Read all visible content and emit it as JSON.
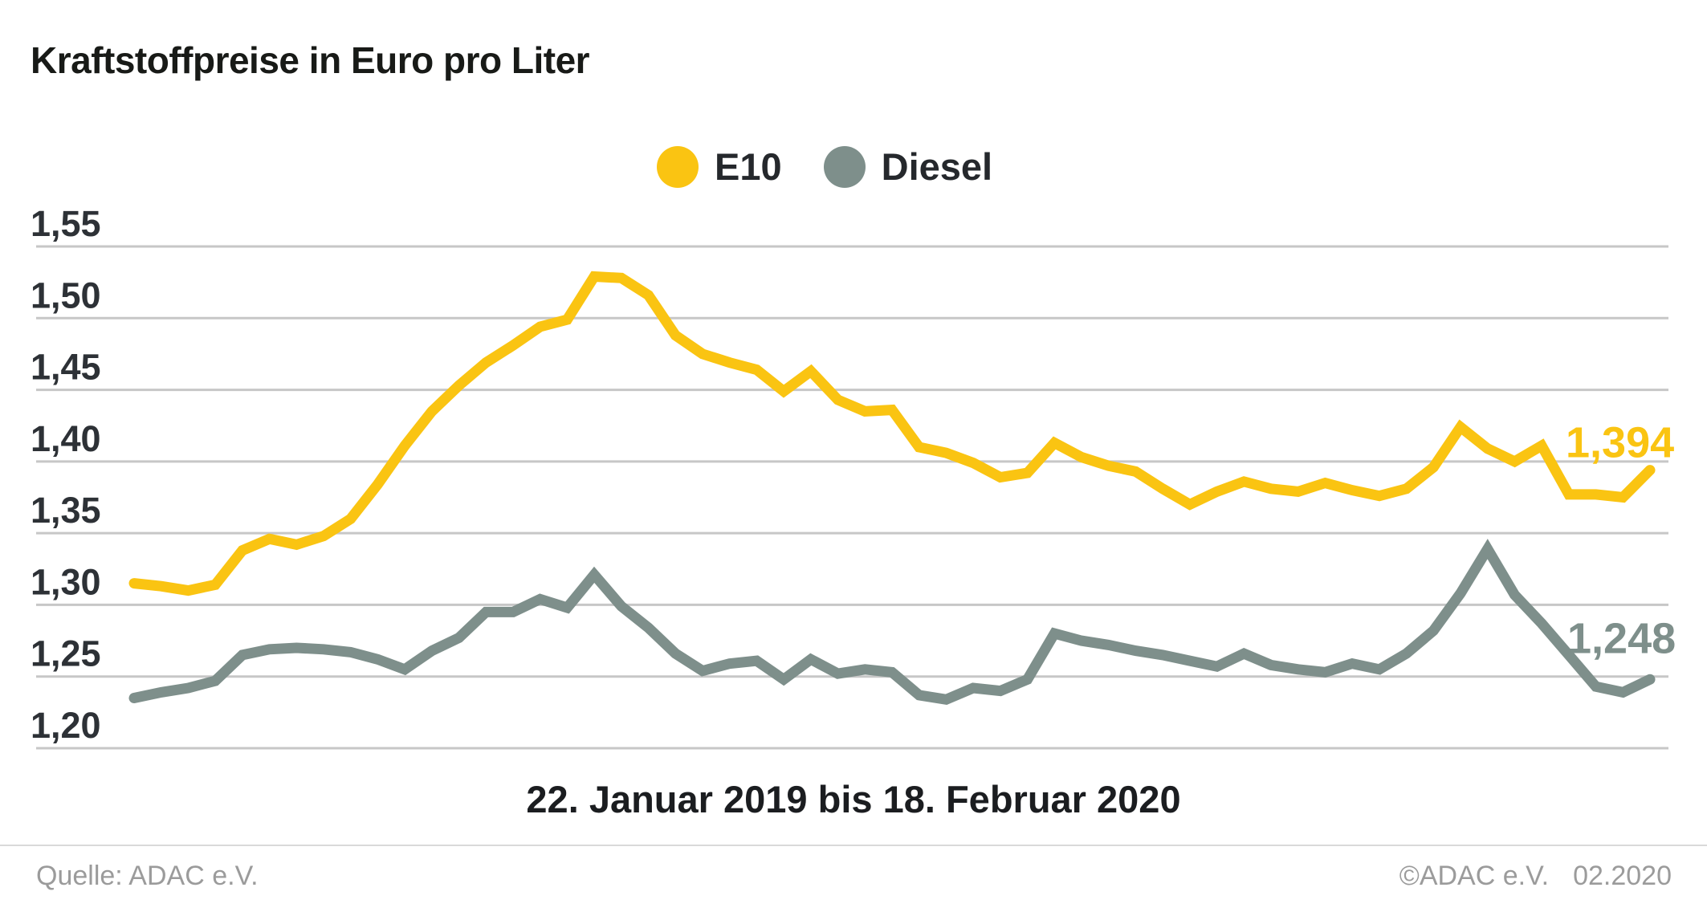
{
  "title": "Kraftstoffpreise in Euro pro Liter",
  "legend": [
    {
      "label": "E10",
      "color": "#FAC412"
    },
    {
      "label": "Diesel",
      "color": "#7E8F8B"
    }
  ],
  "chart_data": {
    "type": "line",
    "title": "Kraftstoffpreise in Euro pro Liter",
    "xlabel": "22. Januar 2019 bis 18. Februar 2020",
    "ylabel": "Euro pro Liter",
    "ylim": [
      1.2,
      1.55
    ],
    "grid": true,
    "legend_position": "top-center",
    "y_ticks": [
      "1,55",
      "1,50",
      "1,45",
      "1,40",
      "1,35",
      "1,30",
      "1,25",
      "1,20"
    ],
    "x_unit": "weekly values, Tuesdays",
    "series": [
      {
        "name": "E10",
        "color": "#FAC412",
        "end_label": "1,394",
        "values": [
          1.315,
          1.313,
          1.31,
          1.314,
          1.338,
          1.346,
          1.342,
          1.348,
          1.36,
          1.384,
          1.411,
          1.435,
          1.453,
          1.469,
          1.481,
          1.494,
          1.499,
          1.529,
          1.528,
          1.516,
          1.488,
          1.475,
          1.469,
          1.464,
          1.449,
          1.463,
          1.443,
          1.435,
          1.436,
          1.41,
          1.406,
          1.399,
          1.389,
          1.392,
          1.413,
          1.403,
          1.397,
          1.393,
          1.381,
          1.37,
          1.379,
          1.386,
          1.381,
          1.379,
          1.385,
          1.38,
          1.376,
          1.381,
          1.396,
          1.424,
          1.409,
          1.4,
          1.411,
          1.377,
          1.377,
          1.375,
          1.394
        ]
      },
      {
        "name": "Diesel",
        "color": "#7E8F8B",
        "end_label": "1,248",
        "values": [
          1.235,
          1.239,
          1.242,
          1.247,
          1.265,
          1.269,
          1.27,
          1.269,
          1.267,
          1.262,
          1.255,
          1.268,
          1.277,
          1.295,
          1.295,
          1.304,
          1.298,
          1.321,
          1.299,
          1.284,
          1.266,
          1.254,
          1.259,
          1.261,
          1.248,
          1.262,
          1.252,
          1.255,
          1.253,
          1.237,
          1.234,
          1.242,
          1.24,
          1.248,
          1.28,
          1.275,
          1.272,
          1.268,
          1.265,
          1.261,
          1.257,
          1.266,
          1.258,
          1.255,
          1.253,
          1.259,
          1.255,
          1.266,
          1.282,
          1.308,
          1.339,
          1.307,
          1.287,
          1.265,
          1.243,
          1.239,
          1.248
        ]
      }
    ]
  },
  "footer": {
    "source": "Quelle: ADAC e.V.",
    "copyright": "©ADAC e.V.",
    "date": "02.2020"
  }
}
